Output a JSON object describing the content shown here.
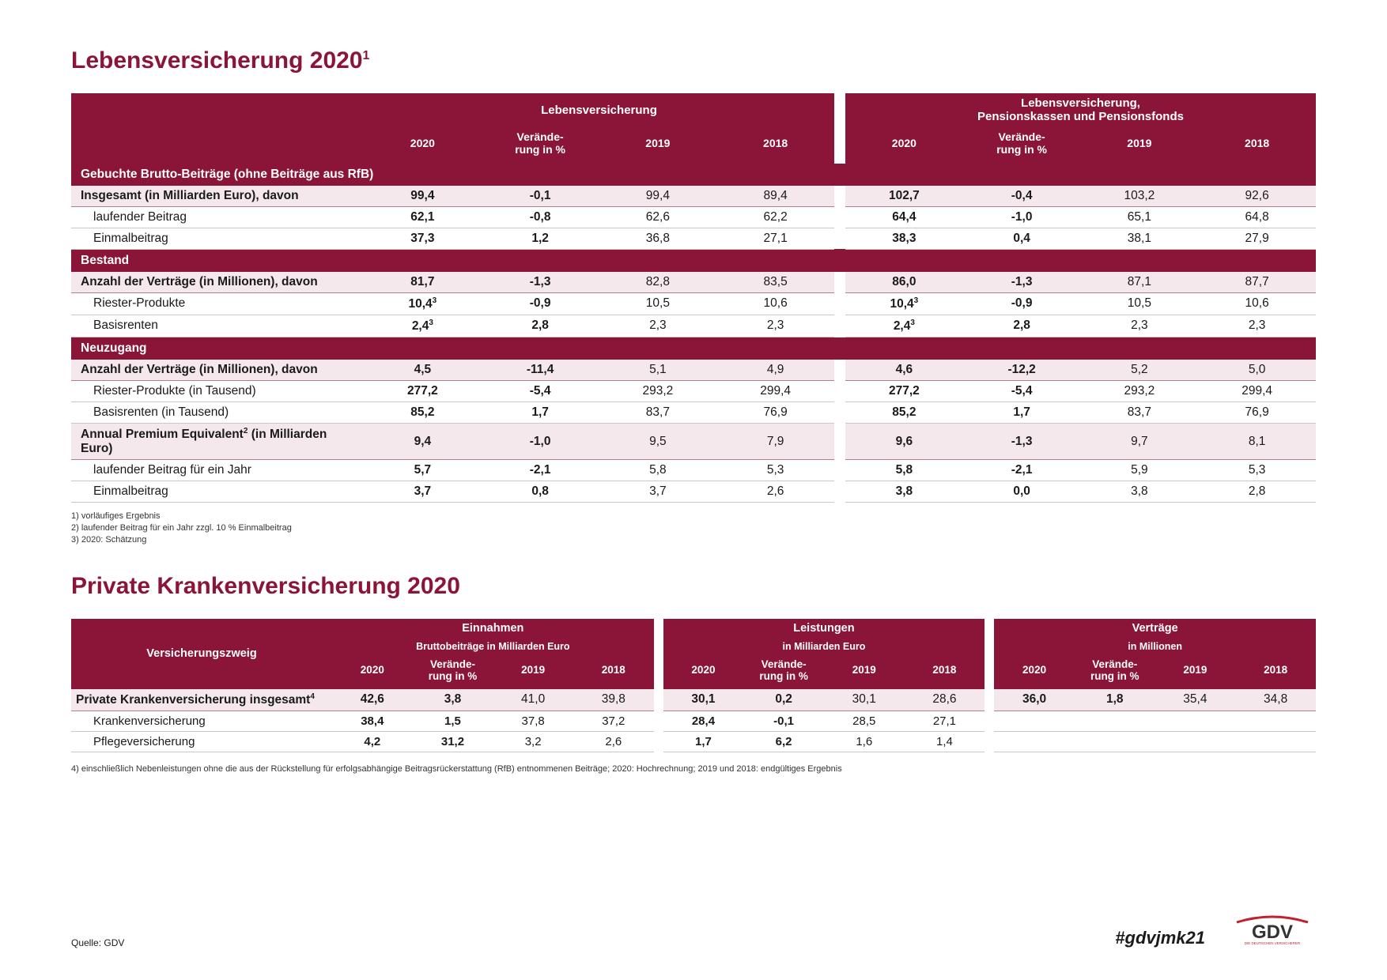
{
  "colors": {
    "brand": "#8b1538",
    "highlight_bg": "#f5e8ec",
    "row_border": "#c8c8c8",
    "text": "#1a1a1a",
    "background": "#ffffff"
  },
  "title1": "Lebensversicherung 2020",
  "title1_sup": "1",
  "table1": {
    "group_headers": [
      "Lebensversicherung",
      "Lebensversicherung,\nPensionskassen und Pensionsfonds"
    ],
    "col_headers": [
      "2020",
      "Verände-\nrung in %",
      "2019",
      "2018",
      "2020",
      "Verände-\nrung in %",
      "2019",
      "2018"
    ],
    "rows": [
      {
        "type": "section",
        "label": "Gebuchte Brutto-Beiträge (ohne Beiträge aus RfB)"
      },
      {
        "type": "highlight",
        "label": "Insgesamt  (in Milliarden Euro), davon",
        "v": [
          "99,4",
          "-0,1",
          "99,4",
          "89,4",
          "102,7",
          "-0,4",
          "103,2",
          "92,6"
        ]
      },
      {
        "type": "data",
        "label": "laufender Beitrag",
        "indent": true,
        "v": [
          "62,1",
          "-0,8",
          "62,6",
          "62,2",
          "64,4",
          "-1,0",
          "65,1",
          "64,8"
        ]
      },
      {
        "type": "data",
        "label": "Einmalbeitrag",
        "indent": true,
        "v": [
          "37,3",
          "1,2",
          "36,8",
          "27,1",
          "38,3",
          "0,4",
          "38,1",
          "27,9"
        ]
      },
      {
        "type": "section",
        "label": "Bestand"
      },
      {
        "type": "highlight",
        "label": "Anzahl der Verträge (in Millionen), davon",
        "v": [
          "81,7",
          "-1,3",
          "82,8",
          "83,5",
          "86,0",
          "-1,3",
          "87,1",
          "87,7"
        ]
      },
      {
        "type": "data",
        "label": "Riester-Produkte",
        "indent": true,
        "sup": [
          "3",
          "",
          "",
          "",
          "3",
          "",
          "",
          ""
        ],
        "v": [
          "10,4",
          "-0,9",
          "10,5",
          "10,6",
          "10,4",
          "-0,9",
          "10,5",
          "10,6"
        ]
      },
      {
        "type": "data",
        "label": "Basisrenten",
        "indent": true,
        "sup": [
          "3",
          "",
          "",
          "",
          "3",
          "",
          "",
          ""
        ],
        "v": [
          "2,4",
          "2,8",
          "2,3",
          "2,3",
          "2,4",
          "2,8",
          "2,3",
          "2,3"
        ]
      },
      {
        "type": "section",
        "label": "Neuzugang"
      },
      {
        "type": "highlight",
        "label": "Anzahl der Verträge (in Millionen), davon",
        "v": [
          "4,5",
          "-11,4",
          "5,1",
          "4,9",
          "4,6",
          "-12,2",
          "5,2",
          "5,0"
        ]
      },
      {
        "type": "data",
        "label": "Riester-Produkte (in Tausend)",
        "indent": true,
        "v": [
          "277,2",
          "-5,4",
          "293,2",
          "299,4",
          "277,2",
          "-5,4",
          "293,2",
          "299,4"
        ]
      },
      {
        "type": "data",
        "label": "Basisrenten (in Tausend)",
        "indent": true,
        "v": [
          "85,2",
          "1,7",
          "83,7",
          "76,9",
          "85,2",
          "1,7",
          "83,7",
          "76,9"
        ]
      },
      {
        "type": "highlight",
        "label": "Annual Premium Equivalent² (in Milliarden Euro)",
        "label_html": "Annual Premium Equivalent<sup>2</sup> (in Milliarden Euro)",
        "v": [
          "9,4",
          "-1,0",
          "9,5",
          "7,9",
          "9,6",
          "-1,3",
          "9,7",
          "8,1"
        ]
      },
      {
        "type": "data",
        "label": "laufender Beitrag für ein Jahr",
        "indent": true,
        "v": [
          "5,7",
          "-2,1",
          "5,8",
          "5,3",
          "5,8",
          "-2,1",
          "5,9",
          "5,3"
        ]
      },
      {
        "type": "data",
        "label": "Einmalbeitrag",
        "indent": true,
        "v": [
          "3,7",
          "0,8",
          "3,7",
          "2,6",
          "3,8",
          "0,0",
          "3,8",
          "2,8"
        ]
      }
    ]
  },
  "footnotes1": [
    "1)  vorläufiges Ergebnis",
    "2)  laufender Beitrag für ein Jahr zzgl. 10 % Einmalbeitrag",
    "3)  2020: Schätzung"
  ],
  "title2": "Private Krankenversicherung 2020",
  "table2": {
    "left_header": "Versicherungszweig",
    "groups": [
      {
        "title": "Einnahmen",
        "sub": "Bruttobeiträge in Milliarden Euro"
      },
      {
        "title": "Leistungen",
        "sub": "in Milliarden Euro"
      },
      {
        "title": "Verträge",
        "sub": "in Millionen"
      }
    ],
    "col_headers": [
      "2020",
      "Verände-\nrung in %",
      "2019",
      "2018",
      "2020",
      "Verände-\nrung in %",
      "2019",
      "2018",
      "2020",
      "Verände-\nrung in %",
      "2019",
      "2018"
    ],
    "rows": [
      {
        "type": "highlight",
        "label_html": "Private Krankenversicherung insgesamt<sup>4</sup>",
        "v": [
          "42,6",
          "3,8",
          "41,0",
          "39,8",
          "30,1",
          "0,2",
          "30,1",
          "28,6",
          "36,0",
          "1,8",
          "35,4",
          "34,8"
        ]
      },
      {
        "type": "data",
        "label": "Krankenversicherung",
        "indent": true,
        "v": [
          "38,4",
          "1,5",
          "37,8",
          "37,2",
          "28,4",
          "-0,1",
          "28,5",
          "27,1",
          "",
          "",
          "",
          ""
        ]
      },
      {
        "type": "data",
        "label": "Pflegeversicherung",
        "indent": true,
        "v": [
          "4,2",
          "31,2",
          "3,2",
          "2,6",
          "1,7",
          "6,2",
          "1,6",
          "1,4",
          "",
          "",
          "",
          ""
        ]
      }
    ]
  },
  "footnotes2": "4)  einschließlich Nebenleistungen ohne die aus der Rückstellung für erfolgsabhängige Beitragsrückerstattung (RfB) entnommenen Beiträge; 2020: Hochrechnung; 2019 und 2018: endgültiges Ergebnis",
  "source": "Quelle: GDV",
  "hashtag": "#gdvjmk21",
  "logo": {
    "text": "GDV",
    "tagline": "DIE DEUTSCHEN VERSICHERER"
  }
}
